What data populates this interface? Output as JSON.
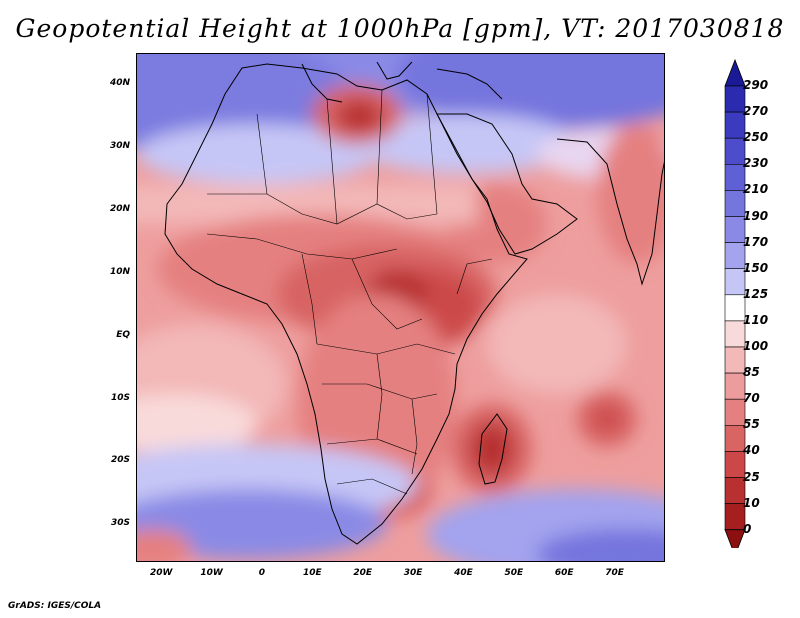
{
  "title": "Geopotential Height at 1000hPa [gpm], VT: 2017030818",
  "credit": "GrADS: IGES/COLA",
  "map": {
    "lon_range": [
      -25,
      80
    ],
    "lat_range": [
      -36,
      45
    ],
    "lat_labels": [
      "40N",
      "30N",
      "20N",
      "10N",
      "EQ",
      "10S",
      "20S",
      "30S"
    ],
    "lon_labels": [
      "20W",
      "10W",
      "0",
      "10E",
      "20E",
      "30E",
      "40E",
      "50E",
      "60E",
      "70E"
    ]
  },
  "colorbar": {
    "labels": [
      "290",
      "270",
      "250",
      "230",
      "210",
      "190",
      "170",
      "150",
      "125",
      "110",
      "100",
      "85",
      "70",
      "55",
      "40",
      "25",
      "10",
      "0"
    ],
    "colors": [
      "#1a1a96",
      "#2b2bb0",
      "#3b3bc0",
      "#4d4dcc",
      "#6060d6",
      "#7575de",
      "#8a8ae6",
      "#a3a3ee",
      "#c6c6f6",
      "#ffffff",
      "#f9dada",
      "#f3b8b8",
      "#ec9c9c",
      "#e58080",
      "#d86464",
      "#cc4848",
      "#b83030",
      "#a51f1f",
      "#8c1010"
    ]
  },
  "icons": {
    "colorbar_top_arrow": "triangle-up",
    "colorbar_bottom_arrow": "triangle-down"
  }
}
